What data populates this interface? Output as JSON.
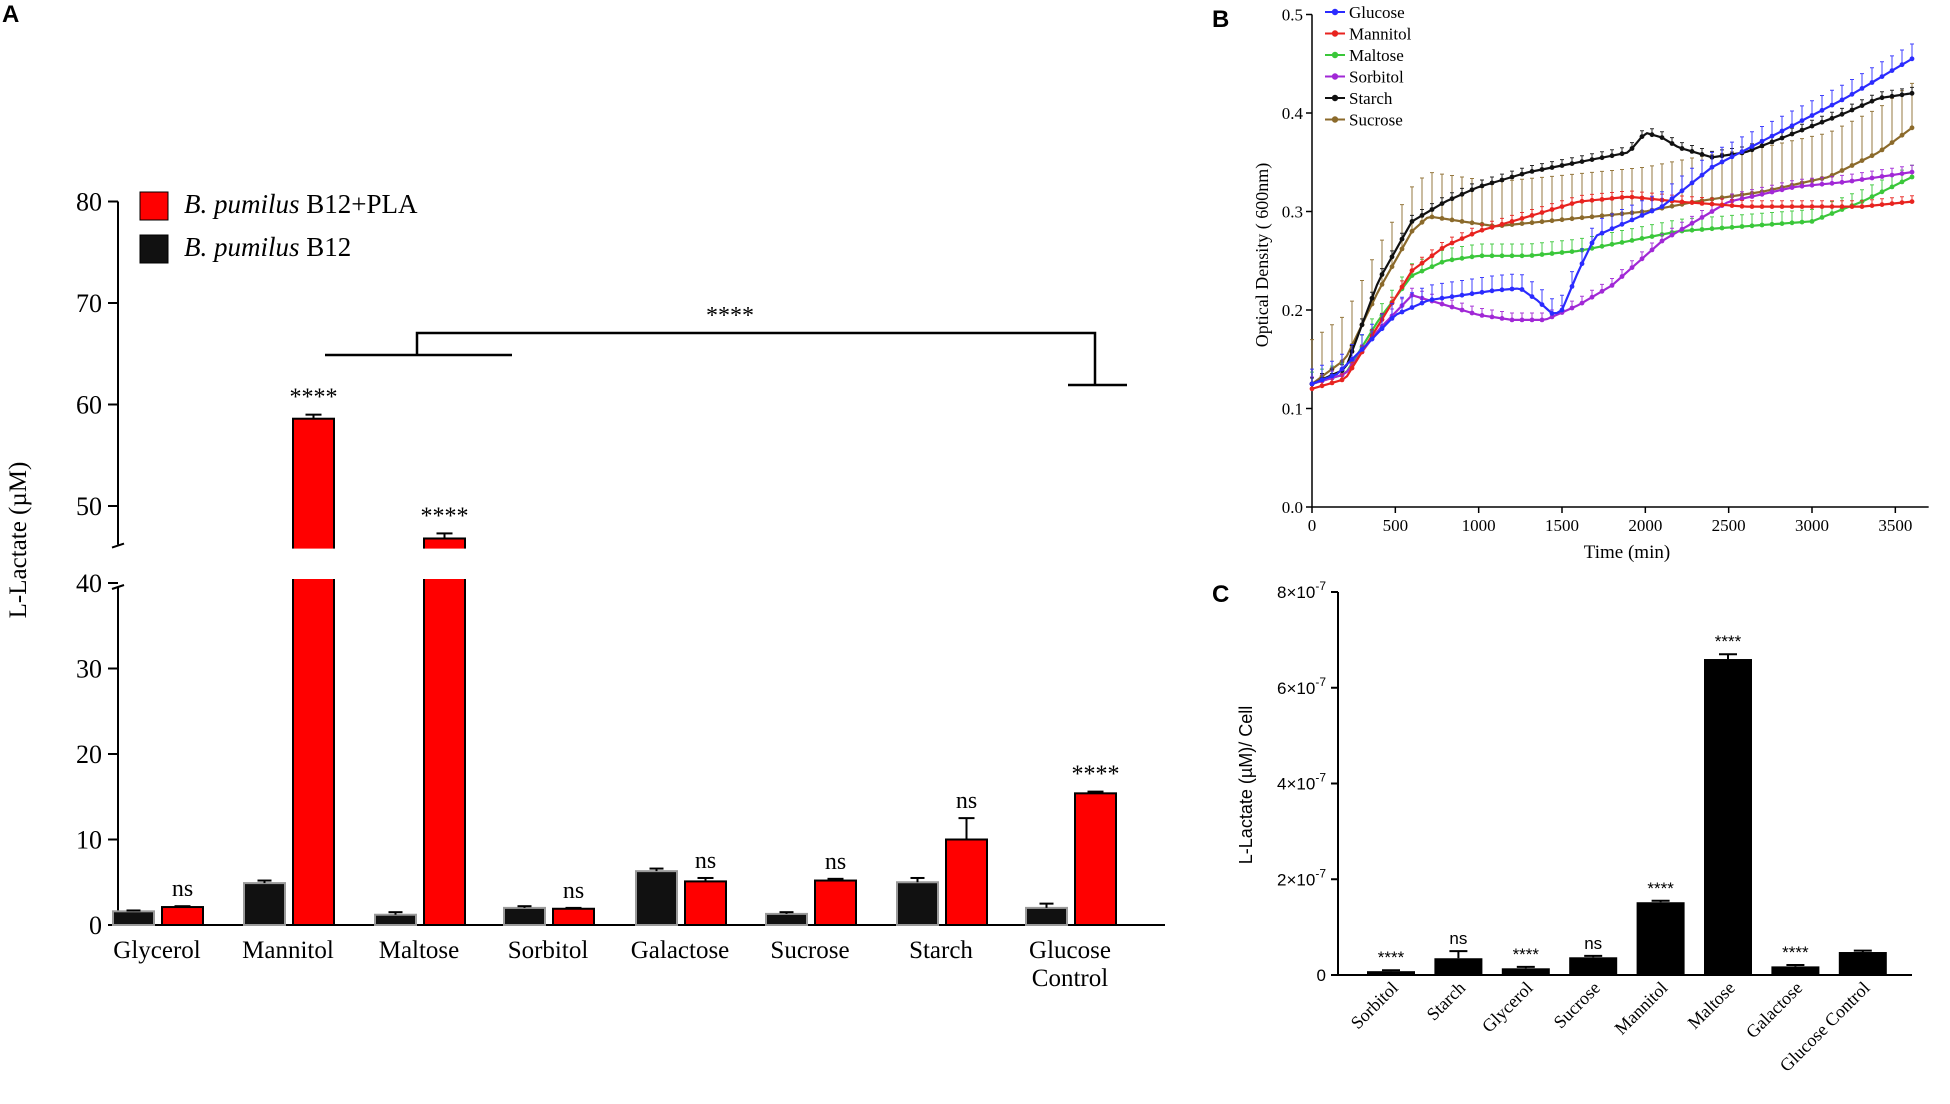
{
  "panels": {
    "a": "A",
    "b": "B",
    "c": "C"
  },
  "chart_data": [
    {
      "panel": "A",
      "type": "bar",
      "ylabel": "L-Lactate (µM)",
      "yticks_lower": [
        0,
        10,
        20,
        30,
        40
      ],
      "yticks_upper": [
        50,
        60,
        70,
        80
      ],
      "axis_break": [
        40,
        45
      ],
      "categories": [
        "Glycerol",
        "Mannitol",
        "Maltose",
        "Sorbitol",
        "Galactose",
        "Sucrose",
        "Starch",
        "Glucose Control"
      ],
      "category_lines": [
        [
          "Glycerol"
        ],
        [
          "Mannitol"
        ],
        [
          "Maltose"
        ],
        [
          "Sorbitol"
        ],
        [
          "Galactose"
        ],
        [
          "Sucrose"
        ],
        [
          "Starch"
        ],
        [
          "Glucose",
          "Control"
        ]
      ],
      "series": [
        {
          "name": "B. pumilus B12",
          "italic": "B. pumilus",
          "suffix": " B12",
          "color": "#111111",
          "values": [
            1.6,
            4.9,
            1.2,
            2.0,
            6.3,
            1.3,
            5.0,
            2.0
          ],
          "errors": [
            0.1,
            0.3,
            0.3,
            0.2,
            0.3,
            0.2,
            0.5,
            0.5
          ]
        },
        {
          "name": "B. pumilus B12+PLA",
          "italic": "B. pumilus",
          "suffix": " B12+PLA",
          "color": "#ff0000",
          "values": [
            2.1,
            58.6,
            46.8,
            1.9,
            5.1,
            5.2,
            10.0,
            15.4
          ],
          "errors": [
            0.1,
            0.4,
            0.5,
            0.1,
            0.4,
            0.2,
            2.5,
            0.2
          ],
          "significance": [
            "ns",
            "****",
            "****",
            "ns",
            "ns",
            "ns",
            "ns",
            "****"
          ]
        }
      ],
      "bracket_label": "****"
    },
    {
      "panel": "B",
      "type": "line",
      "xlabel": "Time (min)",
      "ylabel": "Optical Density ( 600nm)",
      "xlim": [
        0,
        3700
      ],
      "ylim": [
        0,
        0.5
      ],
      "xticks": [
        0,
        500,
        1000,
        1500,
        2000,
        2500,
        3000,
        3500
      ],
      "yticks": [
        "0.0",
        "0.1",
        "0.2",
        "0.3",
        "0.4",
        "0.5"
      ],
      "series": [
        {
          "name": "Glucose",
          "color": "#2b2bff",
          "err": 0.015,
          "points": [
            [
              0,
              0.125
            ],
            [
              150,
              0.135
            ],
            [
              300,
              0.16
            ],
            [
              500,
              0.195
            ],
            [
              700,
              0.21
            ],
            [
              900,
              0.215
            ],
            [
              1100,
              0.22
            ],
            [
              1250,
              0.222
            ],
            [
              1350,
              0.21
            ],
            [
              1450,
              0.195
            ],
            [
              1500,
              0.2
            ],
            [
              1600,
              0.24
            ],
            [
              1700,
              0.275
            ],
            [
              1900,
              0.29
            ],
            [
              2100,
              0.305
            ],
            [
              2400,
              0.345
            ],
            [
              2800,
              0.38
            ],
            [
              3200,
              0.415
            ],
            [
              3600,
              0.455
            ]
          ]
        },
        {
          "name": "Mannitol",
          "color": "#e8231f",
          "err": 0.006,
          "points": [
            [
              0,
              0.12
            ],
            [
              200,
              0.13
            ],
            [
              400,
              0.185
            ],
            [
              600,
              0.24
            ],
            [
              800,
              0.265
            ],
            [
              1000,
              0.28
            ],
            [
              1300,
              0.295
            ],
            [
              1600,
              0.31
            ],
            [
              1900,
              0.315
            ],
            [
              2200,
              0.31
            ],
            [
              2600,
              0.305
            ],
            [
              3000,
              0.305
            ],
            [
              3300,
              0.305
            ],
            [
              3600,
              0.31
            ]
          ]
        },
        {
          "name": "Maltose",
          "color": "#3ac73a",
          "err": 0.012,
          "points": [
            [
              0,
              0.125
            ],
            [
              200,
              0.135
            ],
            [
              400,
              0.19
            ],
            [
              600,
              0.235
            ],
            [
              800,
              0.25
            ],
            [
              1000,
              0.255
            ],
            [
              1300,
              0.255
            ],
            [
              1600,
              0.26
            ],
            [
              1900,
              0.27
            ],
            [
              2200,
              0.28
            ],
            [
              2600,
              0.285
            ],
            [
              3000,
              0.29
            ],
            [
              3300,
              0.31
            ],
            [
              3600,
              0.335
            ]
          ]
        },
        {
          "name": "Sorbitol",
          "color": "#a128d6",
          "err": 0.007,
          "points": [
            [
              0,
              0.125
            ],
            [
              200,
              0.135
            ],
            [
              400,
              0.18
            ],
            [
              600,
              0.215
            ],
            [
              800,
              0.205
            ],
            [
              1000,
              0.195
            ],
            [
              1200,
              0.19
            ],
            [
              1400,
              0.19
            ],
            [
              1600,
              0.205
            ],
            [
              1800,
              0.225
            ],
            [
              2100,
              0.27
            ],
            [
              2500,
              0.31
            ],
            [
              2900,
              0.325
            ],
            [
              3200,
              0.33
            ],
            [
              3600,
              0.34
            ]
          ]
        },
        {
          "name": "Starch",
          "color": "#111111",
          "err": 0.006,
          "points": [
            [
              0,
              0.125
            ],
            [
              200,
              0.14
            ],
            [
              400,
              0.23
            ],
            [
              600,
              0.29
            ],
            [
              800,
              0.31
            ],
            [
              1000,
              0.325
            ],
            [
              1300,
              0.34
            ],
            [
              1600,
              0.35
            ],
            [
              1900,
              0.36
            ],
            [
              2000,
              0.38
            ],
            [
              2100,
              0.375
            ],
            [
              2200,
              0.365
            ],
            [
              2400,
              0.355
            ],
            [
              2600,
              0.36
            ],
            [
              2900,
              0.38
            ],
            [
              3200,
              0.4
            ],
            [
              3400,
              0.415
            ],
            [
              3600,
              0.42
            ]
          ]
        },
        {
          "name": "Sucrose",
          "color": "#8b6a2b",
          "err": 0.045,
          "points": [
            [
              0,
              0.125
            ],
            [
              200,
              0.15
            ],
            [
              400,
              0.22
            ],
            [
              600,
              0.28
            ],
            [
              700,
              0.295
            ],
            [
              900,
              0.29
            ],
            [
              1100,
              0.285
            ],
            [
              1400,
              0.29
            ],
            [
              1700,
              0.295
            ],
            [
              2000,
              0.3
            ],
            [
              2300,
              0.31
            ],
            [
              2700,
              0.32
            ],
            [
              3100,
              0.335
            ],
            [
              3400,
              0.36
            ],
            [
              3600,
              0.385
            ]
          ]
        }
      ]
    },
    {
      "panel": "C",
      "type": "bar",
      "ylabel": "L-Lactate (µM)/ Cell",
      "ylim": [
        0,
        8e-07
      ],
      "yticks": [
        {
          "value": 0,
          "base": "0",
          "exp": ""
        },
        {
          "value": 2e-07,
          "base": "2×10",
          "exp": "-7"
        },
        {
          "value": 4e-07,
          "base": "4×10",
          "exp": "-7"
        },
        {
          "value": 6e-07,
          "base": "6×10",
          "exp": "-7"
        },
        {
          "value": 8e-07,
          "base": "8×10",
          "exp": "-7"
        }
      ],
      "categories": [
        "Sorbitol",
        "Starch",
        "Glycerol",
        "Sucrose",
        "Mannitol",
        "Maltose",
        "Galactose",
        "Glucose Control"
      ],
      "values": [
        8e-09,
        3.5e-08,
        1.4e-08,
        3.7e-08,
        1.52e-07,
        6.6e-07,
        1.8e-08,
        4.8e-08
      ],
      "errors": [
        2e-09,
        1.5e-08,
        3e-09,
        3e-09,
        3e-09,
        1e-08,
        3e-09,
        3e-09
      ],
      "significance": [
        "****",
        "ns",
        "****",
        "ns",
        "****",
        "****",
        "****",
        ""
      ],
      "color": "#000000"
    }
  ]
}
